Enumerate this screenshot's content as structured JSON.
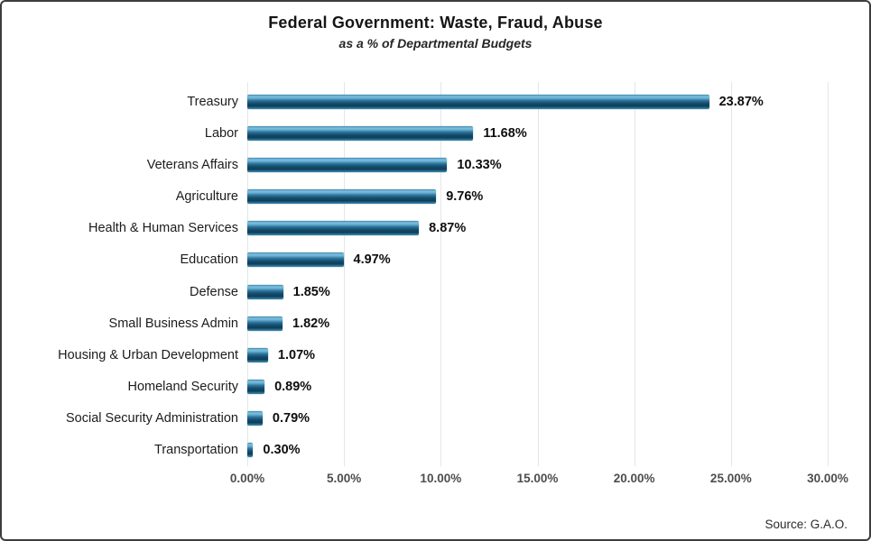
{
  "chart_data": {
    "type": "bar",
    "orientation": "horizontal",
    "title": "Federal Government: Waste, Fraud, Abuse",
    "subtitle": "as a % of Departmental Budgets",
    "categories": [
      "Treasury",
      "Labor",
      "Veterans Affairs",
      "Agriculture",
      "Health & Human Services",
      "Education",
      "Defense",
      "Small Business Admin",
      "Housing & Urban Development",
      "Homeland Security",
      "Social Security Administration",
      "Transportation"
    ],
    "values": [
      23.87,
      11.68,
      10.33,
      9.76,
      8.87,
      4.97,
      1.85,
      1.82,
      1.07,
      0.89,
      0.79,
      0.3
    ],
    "value_labels": [
      "23.87%",
      "11.68%",
      "10.33%",
      "9.76%",
      "8.87%",
      "4.97%",
      "1.85%",
      "1.82%",
      "1.07%",
      "0.89%",
      "0.79%",
      "0.30%"
    ],
    "x_ticks": [
      "0.00%",
      "5.00%",
      "10.00%",
      "15.00%",
      "20.00%",
      "25.00%",
      "30.00%"
    ],
    "xlim": [
      0,
      30
    ],
    "grid": true,
    "legend": "none",
    "bar_color": "#2e7ba3",
    "gridline_color": "#e3e6e9",
    "source": "Source: G.A.O."
  }
}
